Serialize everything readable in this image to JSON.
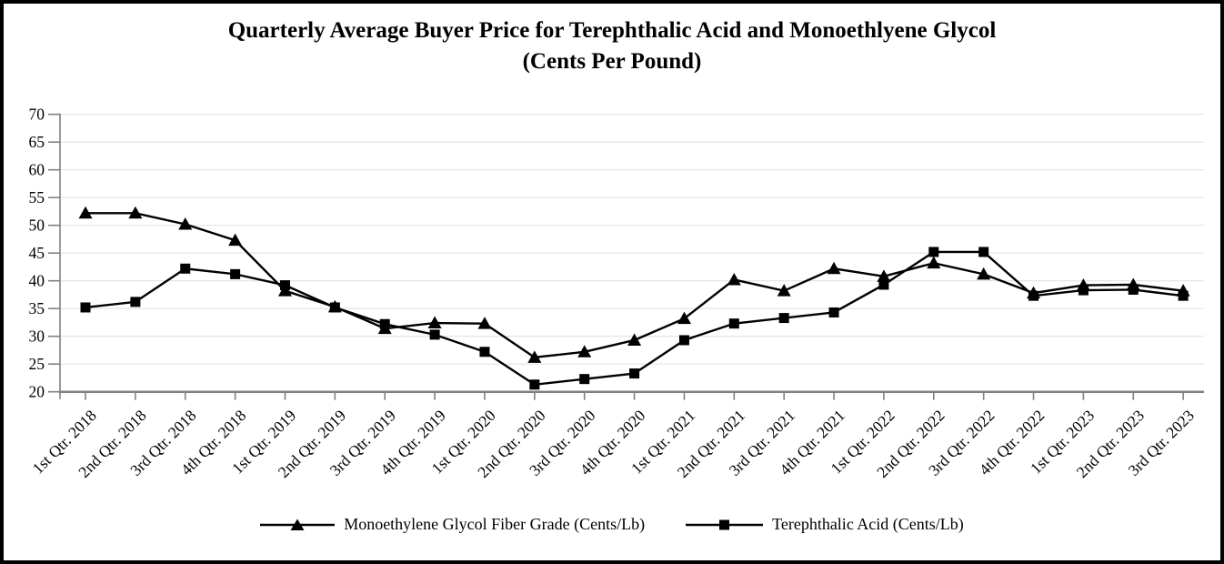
{
  "title": {
    "line1": "Quarterly Average Buyer Price for Terephthalic Acid and Monoethlyene Glycol",
    "line2": "(Cents Per Pound)"
  },
  "chart_data": {
    "type": "line",
    "title": "Quarterly Average Buyer Price for Terephthalic Acid and Monoethlyene Glycol (Cents Per Pound)",
    "categories": [
      "1st Qtr. 2018",
      "2nd Qtr. 2018",
      "3rd Qtr. 2018",
      "4th Qtr. 2018",
      "1st Qtr. 2019",
      "2nd Qtr. 2019",
      "3rd Qtr. 2019",
      "4th Qtr. 2019",
      "1st Qtr. 2020",
      "2nd Qtr. 2020",
      "3rd Qtr. 2020",
      "4th Qtr. 2020",
      "1st Qtr. 2021",
      "2nd Qtr. 2021",
      "3rd Qtr. 2021",
      "4th Qtr. 2021",
      "1st Qtr. 2022",
      "2nd Qtr. 2022",
      "3rd Qtr. 2022",
      "4th Qtr. 2022",
      "1st Qtr. 2023",
      "2nd Qtr. 2023",
      "3rd Qtr. 2023"
    ],
    "series": [
      {
        "name": "Monoethylene Glycol Fiber Grade (Cents/Lb)",
        "marker": "triangle",
        "marker_icon": "triangle-marker-icon",
        "color": "#000000",
        "values": [
          52.2,
          52.2,
          50.2,
          47.3,
          38.2,
          35.3,
          31.4,
          32.4,
          32.3,
          26.2,
          27.2,
          29.3,
          33.2,
          40.2,
          38.2,
          42.2,
          40.8,
          43.2,
          41.2,
          37.8,
          39.2,
          39.3,
          38.2
        ]
      },
      {
        "name": "Terephthalic Acid (Cents/Lb)",
        "marker": "square",
        "marker_icon": "square-marker-icon",
        "color": "#000000",
        "values": [
          35.2,
          36.2,
          42.2,
          41.2,
          39.2,
          35.2,
          32.2,
          30.3,
          27.2,
          21.3,
          22.3,
          23.3,
          29.3,
          32.3,
          33.3,
          34.3,
          39.3,
          45.2,
          45.2,
          37.3,
          38.3,
          38.4,
          37.3
        ]
      }
    ],
    "xlabel": "",
    "ylabel": "",
    "ylim": [
      20,
      70
    ],
    "yticks": [
      20,
      25,
      30,
      35,
      40,
      45,
      50,
      55,
      60,
      65,
      70
    ],
    "grid": "horizontal-only",
    "legend_position": "bottom-center",
    "axis_color": "#808080",
    "grid_color": "#e2e2e2",
    "line_color": "#000000"
  }
}
